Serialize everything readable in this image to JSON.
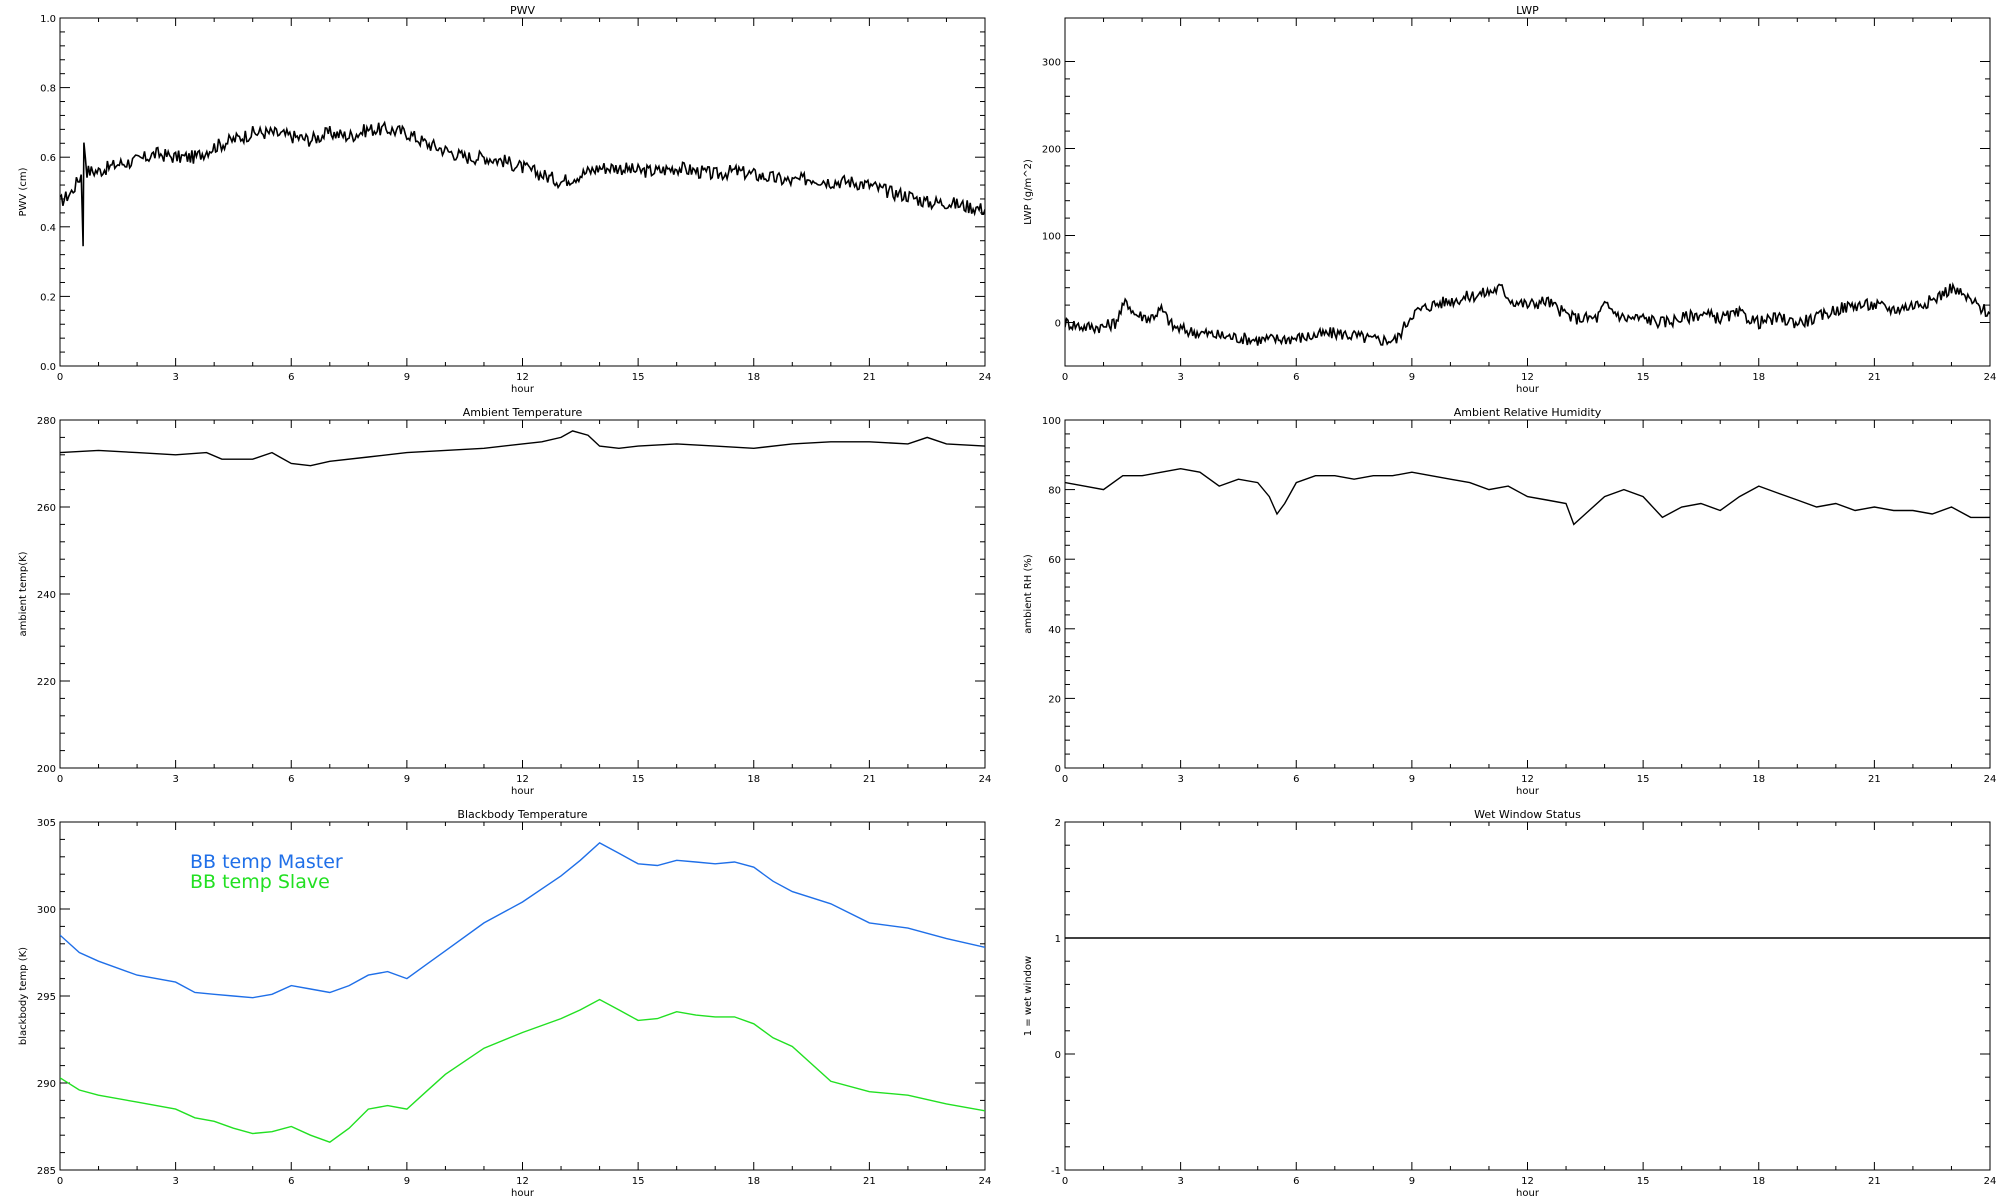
{
  "chart_data": [
    {
      "id": "pwv",
      "type": "line",
      "title": "PWV",
      "xlabel": "hour",
      "ylabel": "PWV (cm)",
      "xlim": [
        0,
        24
      ],
      "ylim": [
        0.0,
        1.0
      ],
      "xticks": [
        "0",
        "3",
        "6",
        "9",
        "12",
        "15",
        "18",
        "21",
        "24"
      ],
      "yticks": [
        "0.0",
        "0.2",
        "0.4",
        "0.6",
        "0.8",
        "1.0"
      ],
      "grid": false,
      "noisy": true,
      "series": [
        {
          "color": "#000000",
          "x": [
            0,
            0.3,
            0.55,
            0.6,
            0.62,
            0.7,
            1,
            1.5,
            2,
            2.5,
            3,
            3.5,
            4,
            4.5,
            5,
            5.5,
            6,
            6.5,
            7,
            7.5,
            8,
            8.5,
            9,
            9.5,
            10,
            10.5,
            11,
            11.5,
            12,
            12.5,
            13,
            13.5,
            14,
            14.5,
            15,
            15.5,
            16,
            16.5,
            17,
            17.5,
            18,
            18.5,
            19,
            19.5,
            20,
            20.5,
            21,
            21.5,
            22,
            22.5,
            23,
            23.5,
            24
          ],
          "y": [
            0.47,
            0.5,
            0.55,
            0.36,
            0.65,
            0.56,
            0.56,
            0.58,
            0.59,
            0.61,
            0.6,
            0.6,
            0.63,
            0.65,
            0.67,
            0.67,
            0.66,
            0.65,
            0.67,
            0.66,
            0.68,
            0.68,
            0.67,
            0.64,
            0.62,
            0.6,
            0.6,
            0.59,
            0.57,
            0.55,
            0.53,
            0.55,
            0.57,
            0.57,
            0.56,
            0.56,
            0.57,
            0.56,
            0.55,
            0.56,
            0.55,
            0.54,
            0.53,
            0.54,
            0.53,
            0.53,
            0.52,
            0.5,
            0.49,
            0.47,
            0.47,
            0.46,
            0.45
          ]
        }
      ]
    },
    {
      "id": "lwp",
      "type": "line",
      "title": "LWP",
      "xlabel": "hour",
      "ylabel": "LWP (g/m^2)",
      "xlim": [
        0,
        24
      ],
      "ylim": [
        -50,
        350
      ],
      "yticks_values": [
        0,
        100,
        200,
        300
      ],
      "xticks": [
        "0",
        "3",
        "6",
        "9",
        "12",
        "15",
        "18",
        "21",
        "24"
      ],
      "yticks": [
        "0",
        "100",
        "200",
        "300"
      ],
      "grid": false,
      "noisy": true,
      "series": [
        {
          "color": "#000000",
          "x": [
            0,
            0.5,
            1,
            1.3,
            1.6,
            1.8,
            2.2,
            2.5,
            2.8,
            3.2,
            4,
            5,
            6,
            7,
            7.5,
            8,
            8.6,
            9,
            9.5,
            10,
            10.5,
            11,
            11.3,
            11.6,
            12,
            12.5,
            12.8,
            13.2,
            13.8,
            14,
            14.5,
            15,
            15.5,
            16,
            16.5,
            17,
            17.5,
            18,
            18.5,
            19,
            19.5,
            20,
            20.5,
            21,
            21.5,
            22,
            22.5,
            23,
            23.5,
            24
          ],
          "y": [
            0,
            -5,
            -5,
            0,
            25,
            10,
            5,
            15,
            -5,
            -10,
            -15,
            -20,
            -18,
            -12,
            -15,
            -20,
            -20,
            10,
            20,
            25,
            30,
            35,
            40,
            25,
            20,
            25,
            15,
            5,
            5,
            20,
            5,
            5,
            0,
            5,
            10,
            5,
            10,
            0,
            5,
            0,
            5,
            15,
            20,
            20,
            15,
            20,
            25,
            40,
            25,
            10
          ]
        }
      ]
    },
    {
      "id": "ambient-temp",
      "type": "line",
      "title": "Ambient Temperature",
      "xlabel": "hour",
      "ylabel": "ambient temp(K)",
      "xlim": [
        0,
        24
      ],
      "ylim": [
        200,
        280
      ],
      "xticks": [
        "0",
        "3",
        "6",
        "9",
        "12",
        "15",
        "18",
        "21",
        "24"
      ],
      "yticks": [
        "200",
        "220",
        "240",
        "260",
        "280"
      ],
      "grid": false,
      "noisy": false,
      "series": [
        {
          "color": "#000000",
          "x": [
            0,
            1,
            2,
            3,
            3.8,
            4.2,
            5,
            5.5,
            5.7,
            6,
            6.5,
            7,
            8,
            9,
            10,
            11,
            12,
            12.5,
            13,
            13.3,
            13.7,
            14,
            14.5,
            15,
            16,
            17,
            18,
            19,
            20,
            21,
            22,
            22.5,
            23,
            24
          ],
          "y": [
            272.5,
            273,
            272.5,
            272,
            272.5,
            271,
            271,
            272.5,
            271.5,
            270,
            269.5,
            270.5,
            271.5,
            272.5,
            273,
            273.5,
            274.5,
            275,
            276,
            277.5,
            276.5,
            274,
            273.5,
            274,
            274.5,
            274,
            273.5,
            274.5,
            275,
            275,
            274.5,
            276,
            274.5,
            274
          ]
        }
      ]
    },
    {
      "id": "ambient-rh",
      "type": "line",
      "title": "Ambient Relative Humidity",
      "xlabel": "hour",
      "ylabel": "ambient RH (%)",
      "xlim": [
        0,
        24
      ],
      "ylim": [
        0,
        100
      ],
      "xticks": [
        "0",
        "3",
        "6",
        "9",
        "12",
        "15",
        "18",
        "21",
        "24"
      ],
      "yticks": [
        "0",
        "20",
        "40",
        "60",
        "80",
        "100"
      ],
      "grid": false,
      "noisy": false,
      "series": [
        {
          "color": "#000000",
          "x": [
            0,
            0.5,
            1,
            1.5,
            2,
            2.5,
            3,
            3.5,
            4,
            4.5,
            5,
            5.3,
            5.5,
            5.7,
            6,
            6.5,
            7,
            7.5,
            8,
            8.5,
            9,
            9.5,
            10,
            10.5,
            11,
            11.5,
            12,
            12.5,
            13,
            13.2,
            13.5,
            14,
            14.5,
            15,
            15.5,
            16,
            16.5,
            17,
            17.5,
            18,
            18.5,
            19,
            19.5,
            20,
            20.5,
            21,
            21.5,
            22,
            22.5,
            23,
            23.5,
            24
          ],
          "y": [
            82,
            81,
            80,
            84,
            84,
            85,
            86,
            85,
            81,
            83,
            82,
            78,
            73,
            76,
            82,
            84,
            84,
            83,
            84,
            84,
            85,
            84,
            83,
            82,
            80,
            81,
            78,
            77,
            76,
            70,
            73,
            78,
            80,
            78,
            72,
            75,
            76,
            74,
            78,
            81,
            79,
            77,
            75,
            76,
            74,
            75,
            74,
            74,
            73,
            75,
            72,
            72
          ]
        }
      ]
    },
    {
      "id": "bb-temp",
      "type": "line",
      "title": "Blackbody Temperature",
      "xlabel": "hour",
      "ylabel": "blackbody temp (K)",
      "xlim": [
        0,
        24
      ],
      "ylim": [
        285,
        305
      ],
      "xticks": [
        "0",
        "3",
        "6",
        "9",
        "12",
        "15",
        "18",
        "21",
        "24"
      ],
      "yticks": [
        "285",
        "290",
        "295",
        "300",
        "305"
      ],
      "grid": false,
      "noisy": false,
      "legend_position": "upper-left",
      "series": [
        {
          "name": "BB temp Master",
          "color": "#1f6fe8",
          "x": [
            0,
            0.5,
            1,
            2,
            3,
            3.5,
            4,
            4.5,
            5,
            5.5,
            6,
            6.5,
            7,
            7.5,
            8,
            8.5,
            9,
            9.5,
            10,
            11,
            12,
            13,
            13.5,
            14,
            14.5,
            15,
            15.5,
            16,
            16.5,
            17,
            17.5,
            18,
            18.5,
            19,
            20,
            21,
            22,
            23,
            24
          ],
          "y": [
            298.5,
            297.5,
            297,
            296.2,
            295.8,
            295.2,
            295.1,
            295,
            294.9,
            295.1,
            295.6,
            295.4,
            295.2,
            295.6,
            296.2,
            296.4,
            296,
            296.8,
            297.6,
            299.2,
            300.4,
            301.9,
            302.8,
            303.8,
            303.2,
            302.6,
            302.5,
            302.8,
            302.7,
            302.6,
            302.7,
            302.4,
            301.6,
            301,
            300.3,
            299.2,
            298.9,
            298.3,
            297.8
          ]
        },
        {
          "name": "BB temp Slave",
          "color": "#22e022",
          "x": [
            0,
            0.5,
            1,
            2,
            3,
            3.5,
            4,
            4.5,
            5,
            5.5,
            6,
            6.5,
            7,
            7.5,
            8,
            8.5,
            9,
            9.5,
            10,
            11,
            12,
            13,
            13.5,
            14,
            14.5,
            15,
            15.5,
            16,
            16.5,
            17,
            17.5,
            18,
            18.5,
            19,
            20,
            21,
            22,
            23,
            24
          ],
          "y": [
            290.3,
            289.6,
            289.3,
            288.9,
            288.5,
            288,
            287.8,
            287.4,
            287.1,
            287.2,
            287.5,
            287,
            286.6,
            287.4,
            288.5,
            288.7,
            288.5,
            289.5,
            290.5,
            292,
            292.9,
            293.7,
            294.2,
            294.8,
            294.2,
            293.6,
            293.7,
            294.1,
            293.9,
            293.8,
            293.8,
            293.4,
            292.6,
            292.1,
            290.1,
            289.5,
            289.3,
            288.8,
            288.4
          ]
        }
      ]
    },
    {
      "id": "wet-window",
      "type": "line",
      "title": "Wet Window Status",
      "xlabel": "hour",
      "ylabel": "1 = wet window",
      "xlim": [
        0,
        24
      ],
      "ylim": [
        -1,
        2
      ],
      "xticks": [
        "0",
        "3",
        "6",
        "9",
        "12",
        "15",
        "18",
        "21",
        "24"
      ],
      "yticks": [
        "-1",
        "0",
        "1",
        "2"
      ],
      "grid": false,
      "noisy": false,
      "series": [
        {
          "color": "#000000",
          "x": [
            0,
            24
          ],
          "y": [
            1,
            1
          ]
        }
      ]
    }
  ]
}
